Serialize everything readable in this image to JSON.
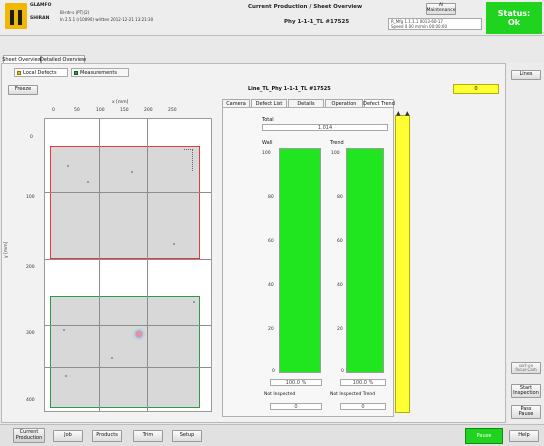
{
  "header": {
    "logo_text": "",
    "logo_caption": "GLAMFO",
    "logo_sub": "SHIRAN",
    "left_info_1": "Bl-rdr-s (PT)(2)",
    "left_info_2": "In 2.5.1 (r10090) written 2012-12-21 13:21:30",
    "title": "Current Production / Sheet Overview",
    "subtitle": "Phy 1-1-1_TL #17525",
    "admin_btn_line1": "Al",
    "admin_btn_line2": "Maintenance",
    "right_info_1": "R_Mfg 1.1.1.1   0013-60-17",
    "right_info_2": "Speed   0.00 m/min   00:00:00",
    "status_label": "Status:",
    "status_value": "Ok"
  },
  "tabs": {
    "main_tab_1": "Sheet Overview",
    "main_tab_2": "Detailed Overview",
    "sub_tab_1": "Local Defects",
    "sub_tab_2": "Measurements"
  },
  "left_panel": {
    "freeze_btn": "Freeze",
    "x_axis_title": "x [mm]",
    "y_axis_title": "y [mm]",
    "x_ticks": [
      "0",
      "50",
      "100",
      "150",
      "200",
      "250"
    ],
    "y_ticks": [
      "0",
      "100",
      "200",
      "300",
      "400"
    ]
  },
  "right_panel": {
    "title": "Line_TL_Phy 1-1-1_TL #17525",
    "value_box": "0",
    "tabs": [
      "Camera",
      "Defect List",
      "Details",
      "Operation",
      "Defect Trend"
    ],
    "total_label": "Total",
    "total_value": "1.014",
    "bar1_label": "Wall",
    "bar2_label": "Trend",
    "bar_ticks": [
      "100",
      "80",
      "60",
      "40",
      "20",
      "0"
    ],
    "bar1_percent_text": "100.0 %",
    "bar2_percent_text": "100.0 %",
    "bar1_level": 1.0,
    "bar2_level": 1.0,
    "bar1_footer_label": "Not Inspected",
    "bar2_footer_label": "Not Inspected Trend",
    "bar1_footer_value": "0",
    "bar2_footer_value": "0"
  },
  "right_column": {
    "sidebar_btn_top": "Lines",
    "sidebar_btn_mid_line1": "sort-on",
    "sidebar_btn_mid_line2": "focus-Cam",
    "sidebar_btn_defect_line1": "Start",
    "sidebar_btn_defect_line2": "Inspection",
    "sidebar_btn_pause_line1": "Pass",
    "sidebar_btn_pause_line2": "Pause"
  },
  "bottom_bar": {
    "btn1_line1": "Current",
    "btn1_line2": "Production",
    "btn2": "Job",
    "btn3": "Products",
    "btn4": "Trim",
    "btn5": "Setup",
    "green_btn": "Pause",
    "help_btn": "Help"
  },
  "colors": {
    "status_green": "#1fd31f",
    "bar_green": "#1fe61f",
    "yellow": "#ffff33",
    "red_outline": "#e23a3a",
    "green_outline": "#2f9a44"
  }
}
